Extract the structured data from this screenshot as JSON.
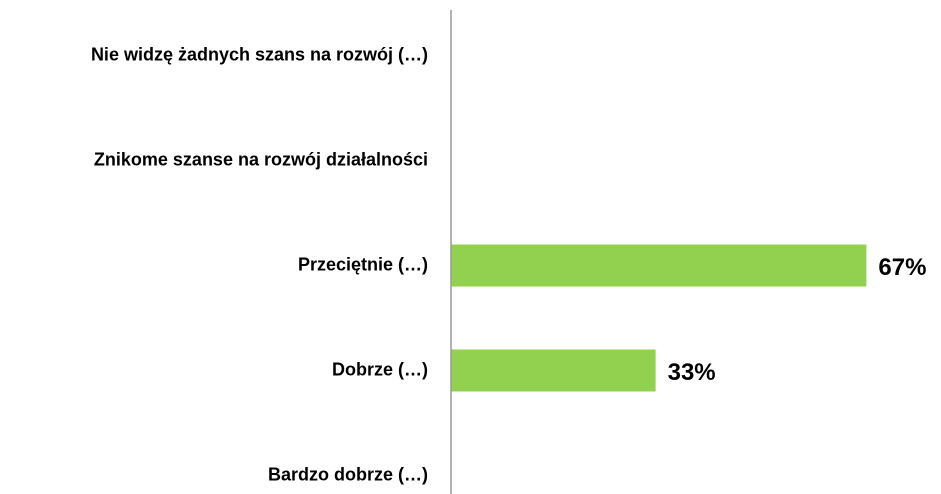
{
  "chart_data": {
    "type": "barh",
    "categories": [
      "Nie widzę żadnych szans na rozwój (…)",
      "Znikome szanse na rozwój działalności",
      "Przeciętnie (…)",
      "Dobrze (…)",
      "Bardzo dobrze (…)"
    ],
    "values": [
      0,
      0,
      67,
      33,
      0
    ],
    "value_labels": [
      null,
      null,
      "67%",
      "33%",
      null
    ],
    "color": "#92d050",
    "xlim": [
      0,
      100
    ]
  }
}
